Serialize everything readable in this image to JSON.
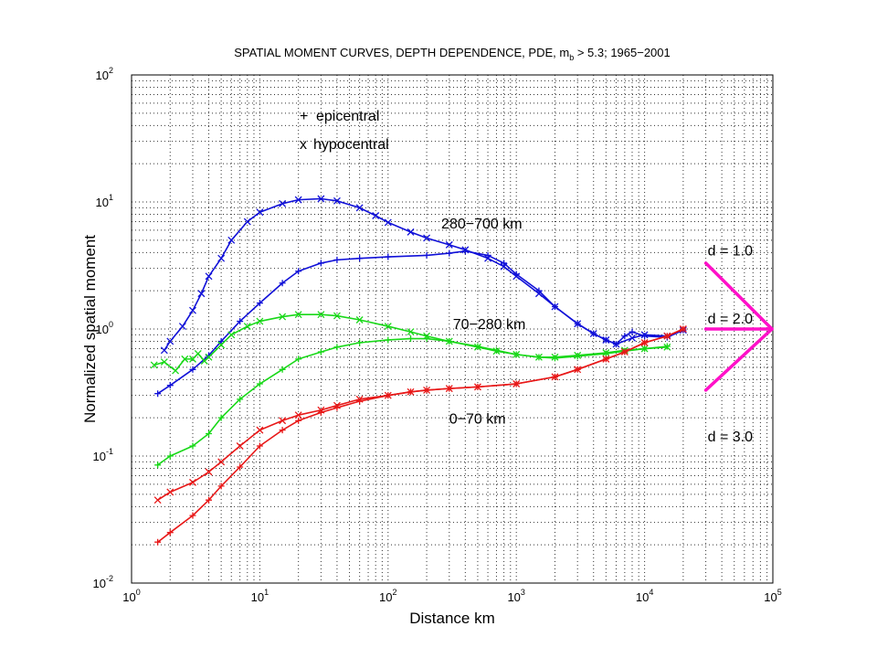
{
  "chart_data": {
    "type": "line",
    "title": "SPATIAL MOMENT CURVES, DEPTH DEPENDENCE, PDE, m",
    "title_sub": "b",
    "title_rest": " > 5.3; 1965−2001",
    "xlabel": "Distance km",
    "ylabel": "Normalized spatial moment",
    "x_scale": "log",
    "y_scale": "log",
    "xlim": [
      1,
      100000
    ],
    "ylim": [
      0.01,
      100
    ],
    "grid": true,
    "x_ticks": [
      {
        "base": "10",
        "exp": "0",
        "v": 1
      },
      {
        "base": "10",
        "exp": "1",
        "v": 10
      },
      {
        "base": "10",
        "exp": "2",
        "v": 100
      },
      {
        "base": "10",
        "exp": "3",
        "v": 1000
      },
      {
        "base": "10",
        "exp": "4",
        "v": 10000
      },
      {
        "base": "10",
        "exp": "5",
        "v": 100000
      }
    ],
    "y_ticks": [
      {
        "base": "10",
        "exp": "-2",
        "v": 0.01
      },
      {
        "base": "10",
        "exp": "-1",
        "v": 0.1
      },
      {
        "base": "10",
        "exp": "0",
        "v": 1
      },
      {
        "base": "10",
        "exp": "1",
        "v": 10
      },
      {
        "base": "10",
        "exp": "2",
        "v": 100
      }
    ],
    "legend": {
      "placement": "top-left",
      "entries": [
        {
          "marker": "+",
          "label": "epicentral"
        },
        {
          "marker": "x",
          "label": "hypocentral"
        }
      ]
    },
    "annotations": [
      {
        "text": "280−700 km",
        "x": 260,
        "y": 6.2
      },
      {
        "text": "70−280 km",
        "x": 320,
        "y": 1.0
      },
      {
        "text": "0−70 km",
        "x": 300,
        "y": 0.18
      },
      {
        "text": "d = 1.0",
        "x": 100000,
        "y": 3.8,
        "anchor": "end"
      },
      {
        "text": "d = 2.0",
        "x": 100000,
        "y": 1.1,
        "anchor": "end"
      },
      {
        "text": "d = 3.0",
        "x": 100000,
        "y": 0.13,
        "anchor": "end"
      }
    ],
    "series": [
      {
        "color": "#1010d8",
        "marker": "x",
        "points": [
          [
            1.8,
            0.68
          ],
          [
            2,
            0.8
          ],
          [
            2.5,
            1.05
          ],
          [
            3,
            1.4
          ],
          [
            3.5,
            1.9
          ],
          [
            4,
            2.6
          ],
          [
            5,
            3.6
          ],
          [
            6,
            5
          ],
          [
            8,
            7
          ],
          [
            10,
            8.3
          ],
          [
            15,
            9.7
          ],
          [
            20,
            10.4
          ],
          [
            30,
            10.6
          ],
          [
            40,
            10.2
          ],
          [
            60,
            9
          ],
          [
            80,
            7.8
          ],
          [
            100,
            6.9
          ],
          [
            150,
            5.8
          ],
          [
            200,
            5.2
          ],
          [
            300,
            4.6
          ],
          [
            400,
            4.2
          ],
          [
            600,
            3.6
          ],
          [
            800,
            3.1
          ],
          [
            1000,
            2.6
          ],
          [
            1500,
            1.9
          ],
          [
            2000,
            1.5
          ],
          [
            3000,
            1.1
          ],
          [
            4000,
            0.92
          ],
          [
            5000,
            0.82
          ],
          [
            6000,
            0.76
          ],
          [
            8000,
            0.85
          ],
          [
            10000,
            0.9
          ],
          [
            15000,
            0.88
          ],
          [
            20000,
            0.98
          ]
        ]
      },
      {
        "color": "#1010d8",
        "marker": "+",
        "points": [
          [
            1.6,
            0.31
          ],
          [
            2,
            0.36
          ],
          [
            3,
            0.48
          ],
          [
            4,
            0.62
          ],
          [
            5,
            0.8
          ],
          [
            7,
            1.15
          ],
          [
            10,
            1.6
          ],
          [
            15,
            2.3
          ],
          [
            20,
            2.85
          ],
          [
            30,
            3.3
          ],
          [
            40,
            3.5
          ],
          [
            60,
            3.6
          ],
          [
            100,
            3.7
          ],
          [
            200,
            3.8
          ],
          [
            300,
            3.95
          ],
          [
            400,
            4.1
          ],
          [
            600,
            3.8
          ],
          [
            800,
            3.3
          ],
          [
            1000,
            2.7
          ],
          [
            1500,
            2.0
          ],
          [
            2000,
            1.5
          ],
          [
            3000,
            1.1
          ],
          [
            4000,
            0.92
          ],
          [
            5000,
            0.82
          ],
          [
            6000,
            0.76
          ],
          [
            7000,
            0.88
          ],
          [
            8000,
            0.95
          ],
          [
            10000,
            0.88
          ],
          [
            15000,
            0.86
          ],
          [
            20000,
            0.98
          ]
        ]
      },
      {
        "color": "#18d818",
        "marker": "x",
        "points": [
          [
            1.5,
            0.52
          ],
          [
            1.8,
            0.55
          ],
          [
            2.2,
            0.47
          ],
          [
            2.6,
            0.58
          ],
          [
            3,
            0.58
          ],
          [
            3.3,
            0.64
          ],
          [
            3.7,
            0.56
          ],
          [
            4,
            0.6
          ],
          [
            5,
            0.75
          ],
          [
            6,
            0.9
          ],
          [
            8,
            1.05
          ],
          [
            10,
            1.15
          ],
          [
            15,
            1.25
          ],
          [
            20,
            1.3
          ],
          [
            30,
            1.3
          ],
          [
            40,
            1.27
          ],
          [
            60,
            1.18
          ],
          [
            100,
            1.05
          ],
          [
            150,
            0.95
          ],
          [
            200,
            0.88
          ],
          [
            300,
            0.8
          ],
          [
            500,
            0.72
          ],
          [
            700,
            0.67
          ],
          [
            1000,
            0.63
          ],
          [
            1500,
            0.6
          ],
          [
            2000,
            0.6
          ],
          [
            3000,
            0.62
          ],
          [
            5000,
            0.65
          ],
          [
            7000,
            0.68
          ],
          [
            10000,
            0.7
          ],
          [
            15000,
            0.72
          ]
        ]
      },
      {
        "color": "#18d818",
        "marker": "+",
        "points": [
          [
            1.6,
            0.085
          ],
          [
            2,
            0.1
          ],
          [
            3,
            0.12
          ],
          [
            4,
            0.15
          ],
          [
            5,
            0.2
          ],
          [
            7,
            0.28
          ],
          [
            10,
            0.37
          ],
          [
            15,
            0.48
          ],
          [
            20,
            0.58
          ],
          [
            30,
            0.66
          ],
          [
            40,
            0.72
          ],
          [
            60,
            0.78
          ],
          [
            100,
            0.82
          ],
          [
            150,
            0.84
          ],
          [
            200,
            0.84
          ],
          [
            300,
            0.8
          ],
          [
            500,
            0.73
          ],
          [
            700,
            0.68
          ],
          [
            1000,
            0.63
          ],
          [
            1500,
            0.6
          ],
          [
            2000,
            0.59
          ],
          [
            3000,
            0.61
          ],
          [
            5000,
            0.64
          ],
          [
            7000,
            0.67
          ],
          [
            10000,
            0.7
          ],
          [
            15000,
            0.73
          ]
        ]
      },
      {
        "color": "#e81818",
        "marker": "x",
        "points": [
          [
            1.6,
            0.045
          ],
          [
            2,
            0.052
          ],
          [
            3,
            0.062
          ],
          [
            4,
            0.075
          ],
          [
            5,
            0.09
          ],
          [
            7,
            0.12
          ],
          [
            10,
            0.16
          ],
          [
            15,
            0.19
          ],
          [
            20,
            0.21
          ],
          [
            30,
            0.23
          ],
          [
            40,
            0.25
          ],
          [
            60,
            0.28
          ],
          [
            100,
            0.3
          ],
          [
            150,
            0.32
          ],
          [
            200,
            0.33
          ],
          [
            300,
            0.34
          ],
          [
            500,
            0.35
          ],
          [
            1000,
            0.37
          ],
          [
            2000,
            0.42
          ],
          [
            3000,
            0.48
          ],
          [
            5000,
            0.58
          ],
          [
            7000,
            0.66
          ],
          [
            10000,
            0.78
          ],
          [
            15000,
            0.88
          ],
          [
            20000,
            1.0
          ]
        ]
      },
      {
        "color": "#e81818",
        "marker": "+",
        "points": [
          [
            1.6,
            0.021
          ],
          [
            2,
            0.025
          ],
          [
            3,
            0.034
          ],
          [
            4,
            0.045
          ],
          [
            5,
            0.058
          ],
          [
            7,
            0.082
          ],
          [
            10,
            0.12
          ],
          [
            15,
            0.16
          ],
          [
            20,
            0.19
          ],
          [
            30,
            0.22
          ],
          [
            40,
            0.24
          ],
          [
            60,
            0.27
          ],
          [
            100,
            0.3
          ],
          [
            150,
            0.32
          ],
          [
            200,
            0.33
          ],
          [
            300,
            0.34
          ],
          [
            500,
            0.35
          ],
          [
            1000,
            0.37
          ],
          [
            2000,
            0.42
          ],
          [
            3000,
            0.48
          ],
          [
            5000,
            0.58
          ],
          [
            7000,
            0.66
          ],
          [
            10000,
            0.78
          ],
          [
            15000,
            0.88
          ],
          [
            20000,
            1.0
          ]
        ]
      }
    ],
    "slope_arrows": {
      "color": "#ff10c8",
      "lines": [
        {
          "label": "d = 1.0",
          "from": [
            30000,
            3.3
          ],
          "to": [
            100000,
            1
          ]
        },
        {
          "label": "d = 2.0",
          "from": [
            30000,
            1
          ],
          "to": [
            100000,
            1
          ]
        },
        {
          "label": "d = 3.0",
          "from": [
            30000,
            0.33
          ],
          "to": [
            100000,
            1
          ]
        }
      ]
    }
  }
}
